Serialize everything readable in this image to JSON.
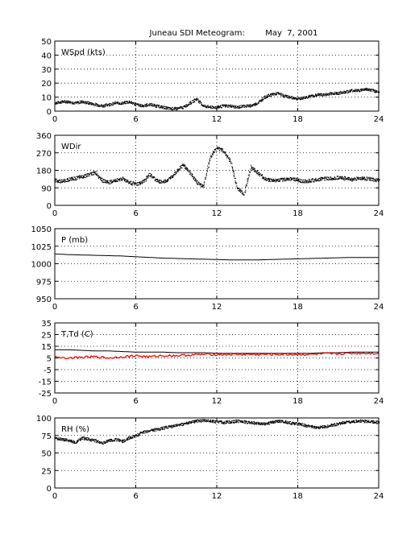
{
  "title": "Juneau SDI Meteogram:        May  7, 2001",
  "colors": {
    "background": "#ffffff",
    "axis": "#000000",
    "grid": "#000000",
    "series_primary": "#000000",
    "series_dewpoint": "#ff0000"
  },
  "chart_data": [
    {
      "type": "scatter",
      "label": "WSpd (kts)",
      "x_ticks": [
        0,
        6,
        12,
        18,
        24
      ],
      "y_ticks": [
        0,
        10,
        20,
        30,
        40,
        50
      ],
      "xlim": [
        0,
        24
      ],
      "ylim": [
        0,
        50
      ],
      "grid": true,
      "series": [
        {
          "color": "#000000",
          "x": [
            0,
            0.5,
            1,
            1.5,
            2,
            2.5,
            3,
            3.5,
            4,
            4.5,
            5,
            5.5,
            6,
            6.5,
            7,
            7.5,
            8,
            8.5,
            9,
            9.5,
            10,
            10.5,
            11,
            11.5,
            12,
            12.5,
            13,
            13.5,
            14,
            14.5,
            15,
            15.5,
            16,
            16.5,
            17,
            17.5,
            18,
            18.5,
            19,
            19.5,
            20,
            20.5,
            21,
            21.5,
            22,
            22.5,
            23,
            23.5,
            24
          ],
          "values": [
            6,
            7,
            7,
            6,
            7,
            6,
            5,
            4,
            5,
            6,
            6,
            7,
            5,
            4,
            5,
            4,
            3,
            2,
            2,
            3,
            6,
            9,
            4,
            3,
            3,
            4,
            4,
            3,
            4,
            4,
            6,
            10,
            12,
            13,
            11,
            10,
            9,
            10,
            11,
            12,
            12,
            13,
            13,
            14,
            15,
            15,
            16,
            15,
            14
          ]
        }
      ]
    },
    {
      "type": "scatter",
      "label": "WDir",
      "x_ticks": [
        0,
        6,
        12,
        18,
        24
      ],
      "y_ticks": [
        0,
        90,
        180,
        270,
        360
      ],
      "xlim": [
        0,
        24
      ],
      "ylim": [
        0,
        360
      ],
      "grid": true,
      "series": [
        {
          "color": "#000000",
          "x": [
            0,
            0.5,
            1,
            1.5,
            2,
            2.5,
            3,
            3.5,
            4,
            4.5,
            5,
            5.5,
            6,
            6.5,
            7,
            7.5,
            8,
            8.5,
            9,
            9.5,
            10,
            10.5,
            11,
            11.5,
            12,
            12.5,
            13,
            13.5,
            14,
            14.5,
            15,
            15.5,
            16,
            16.5,
            17,
            17.5,
            18,
            18.5,
            19,
            19.5,
            20,
            20.5,
            21,
            21.5,
            22,
            22.5,
            23,
            23.5,
            24
          ],
          "values": [
            130,
            125,
            135,
            140,
            150,
            160,
            170,
            130,
            120,
            130,
            140,
            120,
            110,
            120,
            160,
            130,
            120,
            140,
            180,
            210,
            170,
            120,
            100,
            250,
            300,
            280,
            230,
            90,
            60,
            200,
            170,
            140,
            130,
            130,
            135,
            140,
            130,
            125,
            130,
            135,
            140,
            140,
            145,
            140,
            135,
            140,
            140,
            135,
            130
          ]
        }
      ]
    },
    {
      "type": "line",
      "label": "P (mb)",
      "x_ticks": [
        0,
        6,
        12,
        18,
        24
      ],
      "y_ticks": [
        950,
        975,
        1000,
        1025,
        1050
      ],
      "xlim": [
        0,
        24
      ],
      "ylim": [
        950,
        1050
      ],
      "grid": true,
      "series": [
        {
          "color": "#000000",
          "x": [
            0,
            1,
            2,
            3,
            4,
            5,
            6,
            7,
            8,
            9,
            10,
            11,
            12,
            13,
            14,
            15,
            16,
            17,
            18,
            19,
            20,
            21,
            22,
            23,
            24
          ],
          "values": [
            1014,
            1013,
            1012.5,
            1012,
            1011.5,
            1011,
            1010,
            1009,
            1008,
            1007.5,
            1007,
            1006.5,
            1006,
            1005.5,
            1005.5,
            1005.5,
            1006,
            1006.5,
            1007,
            1007.5,
            1008,
            1008.5,
            1009,
            1009,
            1009
          ]
        }
      ]
    },
    {
      "type": "line",
      "label": "T,Td (C)",
      "x_ticks": [
        0,
        6,
        12,
        18,
        24
      ],
      "y_ticks": [
        -25,
        -15,
        -5,
        5,
        15,
        25,
        35
      ],
      "xlim": [
        0,
        24
      ],
      "ylim": [
        -25,
        35
      ],
      "grid": true,
      "series": [
        {
          "color": "#000000",
          "x": [
            0,
            1,
            2,
            3,
            4,
            5,
            6,
            7,
            8,
            9,
            10,
            11,
            12,
            13,
            14,
            15,
            16,
            17,
            18,
            19,
            20,
            21,
            22,
            23,
            24
          ],
          "values": [
            12,
            12,
            11.5,
            11,
            11,
            10.5,
            10,
            10,
            10,
            9.5,
            9.5,
            9.5,
            9,
            9,
            9,
            9,
            9,
            9,
            9,
            9,
            9.5,
            9.5,
            10,
            10,
            10
          ]
        },
        {
          "color": "#ff0000",
          "x": [
            0,
            1,
            2,
            3,
            4,
            5,
            6,
            7,
            8,
            9,
            10,
            11,
            12,
            13,
            14,
            15,
            16,
            17,
            18,
            19,
            20,
            21,
            22,
            23,
            24
          ],
          "values": [
            6,
            5,
            5.5,
            6,
            5,
            6,
            7,
            6,
            7,
            7,
            7.5,
            8,
            8,
            8,
            8,
            8,
            8,
            8,
            8,
            8,
            8.5,
            8.5,
            9,
            9,
            9
          ]
        }
      ]
    },
    {
      "type": "scatter",
      "label": "RH (%)",
      "x_ticks": [
        0,
        6,
        12,
        18,
        24
      ],
      "y_ticks": [
        0,
        25,
        50,
        75,
        100
      ],
      "xlim": [
        0,
        24
      ],
      "ylim": [
        0,
        100
      ],
      "grid": true,
      "series": [
        {
          "color": "#000000",
          "x": [
            0,
            0.5,
            1,
            1.5,
            2,
            2.5,
            3,
            3.5,
            4,
            4.5,
            5,
            5.5,
            6,
            6.5,
            7,
            7.5,
            8,
            8.5,
            9,
            9.5,
            10,
            10.5,
            11,
            11.5,
            12,
            12.5,
            13,
            13.5,
            14,
            14.5,
            15,
            15.5,
            16,
            16.5,
            17,
            17.5,
            18,
            18.5,
            19,
            19.5,
            20,
            20.5,
            21,
            21.5,
            22,
            22.5,
            23,
            23.5,
            24
          ],
          "values": [
            72,
            70,
            68,
            66,
            72,
            70,
            68,
            65,
            68,
            70,
            67,
            72,
            75,
            80,
            82,
            84,
            86,
            88,
            90,
            92,
            94,
            96,
            97,
            96,
            95,
            94,
            95,
            96,
            95,
            94,
            93,
            92,
            94,
            96,
            95,
            93,
            92,
            90,
            88,
            87,
            88,
            90,
            92,
            94,
            95,
            96,
            96,
            95,
            94
          ]
        }
      ]
    }
  ]
}
